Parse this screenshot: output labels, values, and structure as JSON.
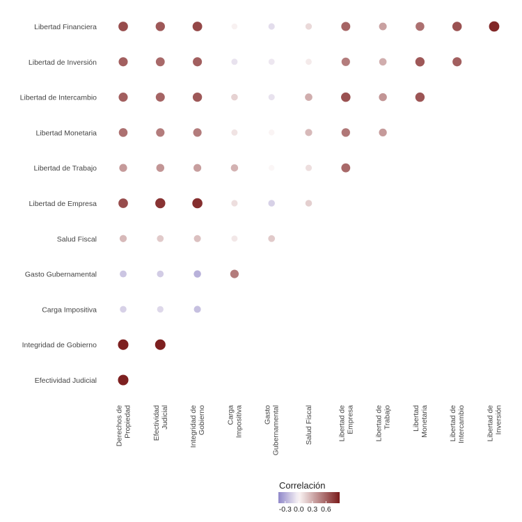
{
  "chart_data": {
    "type": "correlation-dotplot",
    "x_categories": [
      "Derechos de Propiedad",
      "Efectividad Judicial",
      "Integridad de Gobierno",
      "Carga Impositiva",
      "Gasto Gubernamental",
      "Salud Fiscal",
      "Libertad de Empresa",
      "Libertad de Trabajo",
      "Libertad Monetaria",
      "Libertad de Intercambio",
      "Libertad de Inversión"
    ],
    "x_tick_lines": [
      [
        "Derechos de",
        "Propiedad"
      ],
      [
        "Efectividad",
        "Judicial"
      ],
      [
        "Integridad de",
        "Gobierno"
      ],
      [
        "Carga",
        "Impositiva"
      ],
      [
        "Gasto",
        "Gubernamental"
      ],
      [
        "Salud Fiscal"
      ],
      [
        "Libertad de",
        "Empresa"
      ],
      [
        "Libertad de",
        "Trabajo"
      ],
      [
        "Libertad",
        "Monetaria"
      ],
      [
        "Libertad de",
        "Intercambio"
      ],
      [
        "Libertad de",
        "Inversión"
      ]
    ],
    "y_categories": [
      "Libertad Financiera",
      "Libertad de Inversión",
      "Libertad de Intercambio",
      "Libertad Monetaria",
      "Libertad de Trabajo",
      "Libertad de Empresa",
      "Salud Fiscal",
      "Gasto Gubernamental",
      "Carga Impositiva",
      "Integridad de Gobierno",
      "Efectividad Judicial"
    ],
    "rows": [
      {
        "y": "Libertad Financiera",
        "values": [
          0.7,
          0.65,
          0.72,
          0.02,
          -0.1,
          0.12,
          0.6,
          0.35,
          0.55,
          0.68,
          0.85
        ]
      },
      {
        "y": "Libertad de Inversión",
        "values": [
          0.62,
          0.58,
          0.62,
          -0.08,
          -0.06,
          0.05,
          0.5,
          0.3,
          0.65,
          0.62
        ]
      },
      {
        "y": "Libertad de Intercambio",
        "values": [
          0.62,
          0.6,
          0.65,
          0.15,
          -0.08,
          0.3,
          0.68,
          0.4,
          0.66
        ]
      },
      {
        "y": "Libertad Monetaria",
        "values": [
          0.55,
          0.5,
          0.5,
          0.08,
          0.01,
          0.25,
          0.52,
          0.38
        ]
      },
      {
        "y": "Libertad de Trabajo",
        "values": [
          0.38,
          0.4,
          0.36,
          0.28,
          0.0,
          0.1,
          0.58
        ]
      },
      {
        "y": "Libertad de Empresa",
        "values": [
          0.7,
          0.8,
          0.82,
          0.1,
          -0.15,
          0.16
        ]
      },
      {
        "y": "Salud Fiscal",
        "values": [
          0.25,
          0.18,
          0.22,
          0.06,
          0.18
        ]
      },
      {
        "y": "Gasto Gubernamental",
        "values": [
          -0.2,
          -0.17,
          -0.28,
          0.5
        ]
      },
      {
        "y": "Carga Impositiva",
        "values": [
          -0.15,
          -0.12,
          -0.22
        ]
      },
      {
        "y": "Integridad de Gobierno",
        "values": [
          0.88,
          0.88
        ]
      },
      {
        "y": "Efectividad Judicial",
        "values": [
          0.88
        ]
      }
    ],
    "color_scale": {
      "min": -0.45,
      "max": 0.9,
      "stops": [
        {
          "value": -0.45,
          "color": "#8f87c9"
        },
        {
          "value": 0.0,
          "color": "#fbf6f6"
        },
        {
          "value": 0.9,
          "color": "#7a1b1b"
        }
      ]
    },
    "legend": {
      "title": "Correlación",
      "ticks": [
        {
          "value": -0.3,
          "label": "-0.3"
        },
        {
          "value": 0.0,
          "label": "0.0"
        },
        {
          "value": 0.3,
          "label": "0.3"
        },
        {
          "value": 0.6,
          "label": "0.6"
        }
      ],
      "placement": "bottom"
    }
  }
}
